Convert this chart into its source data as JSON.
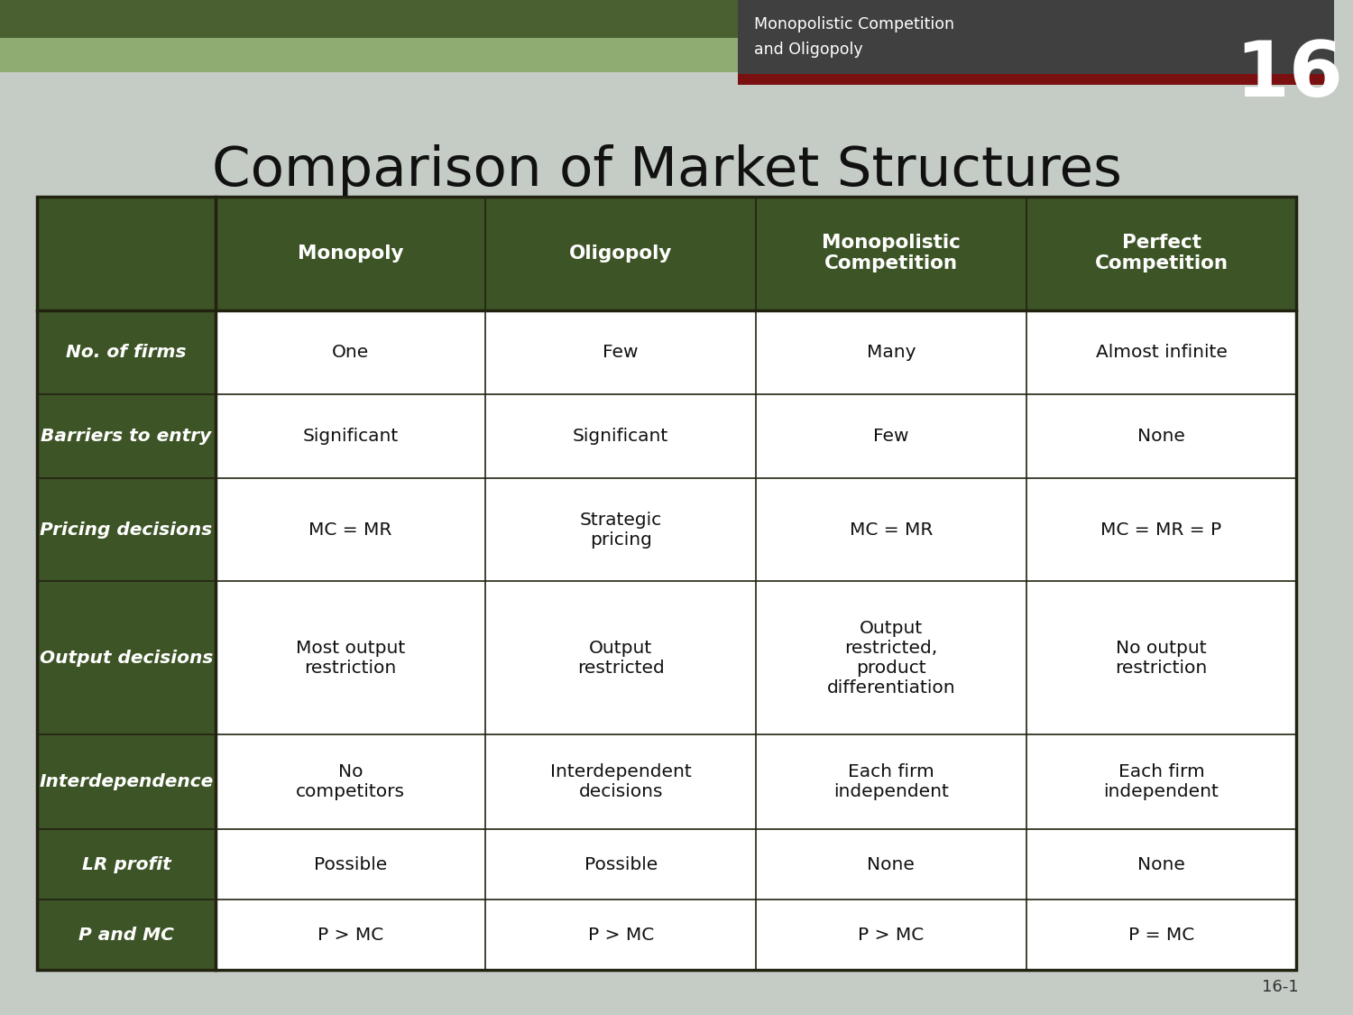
{
  "title": "Comparison of Market Structures",
  "title_fontsize": 44,
  "title_color": "#111111",
  "background_color": "#c5ccc5",
  "header_bg_color": "#3d5426",
  "header_text_color": "#ffffff",
  "cell_bg_color": "#ffffff",
  "table_border_color": "#222211",
  "top_bar_dark_color": "#4a6030",
  "top_bar_light_color": "#8fad72",
  "chapter_box_color": "#404040",
  "chapter_bar_color": "#7a1010",
  "chapter_number": "16",
  "chapter_title_line1": "Monopolistic Competition",
  "chapter_title_line2": "and Oligopoly",
  "page_number": "16-1",
  "col_headers": [
    "Monopoly",
    "Oligopoly",
    "Monopolistic\nCompetition",
    "Perfect\nCompetition"
  ],
  "row_labels": [
    "No. of firms",
    "Barriers to entry",
    "Pricing decisions",
    "Output decisions",
    "Interdependence",
    "LR profit",
    "P and MC"
  ],
  "cell_data": [
    [
      "One",
      "Few",
      "Many",
      "Almost infinite"
    ],
    [
      "Significant",
      "Significant",
      "Few",
      "None"
    ],
    [
      "MC = MR",
      "Strategic\npricing",
      "MC = MR",
      "MC = MR = P"
    ],
    [
      "Most output\nrestriction",
      "Output\nrestricted",
      "Output\nrestricted,\nproduct\ndifferentiation",
      "No output\nrestriction"
    ],
    [
      "No\ncompetitors",
      "Interdependent\ndecisions",
      "Each firm\nindependent",
      "Each firm\nindependent"
    ],
    [
      "Possible",
      "Possible",
      "None",
      "None"
    ],
    [
      "P > MC",
      "P > MC",
      "P > MC",
      "P = MC"
    ]
  ],
  "row_heights_rel": [
    1.05,
    0.78,
    0.78,
    0.95,
    1.42,
    0.88,
    0.65,
    0.65
  ]
}
